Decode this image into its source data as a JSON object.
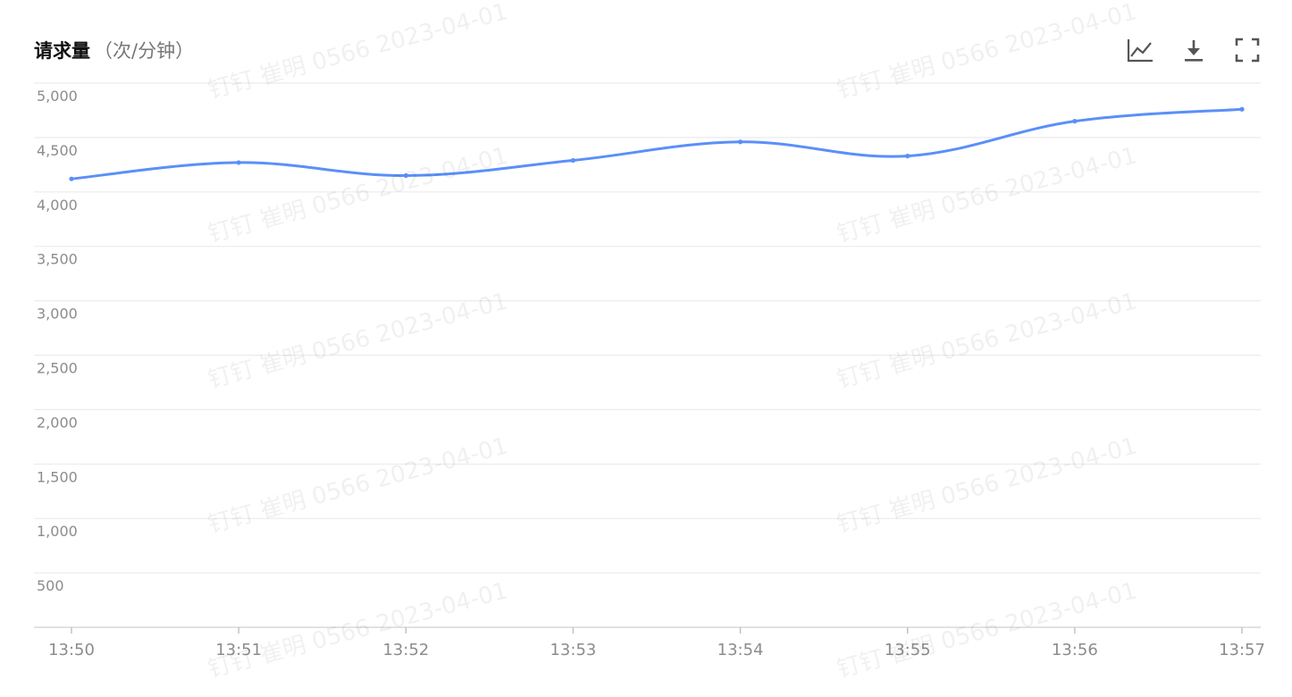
{
  "header": {
    "title": "请求量",
    "unit": "（次/分钟）"
  },
  "toolbar": {
    "icons": [
      "line-chart-icon",
      "download-icon",
      "fullscreen-icon"
    ]
  },
  "watermark": {
    "text": "钉钉 崔明 0566 2023-04-01"
  },
  "chart_data": {
    "type": "line",
    "title": "请求量（次/分钟）",
    "x": [
      "13:50",
      "13:51",
      "13:52",
      "13:53",
      "13:54",
      "13:55",
      "13:56",
      "13:57"
    ],
    "series": [
      {
        "values": [
          4120,
          4270,
          4150,
          4290,
          4460,
          4330,
          4650,
          4760
        ],
        "color": "#5b8ff9"
      }
    ],
    "yticks": [
      500,
      1000,
      1500,
      2000,
      2500,
      3000,
      3500,
      4000,
      4500,
      5000
    ],
    "ytick_labels": [
      "500",
      "1,000",
      "1,500",
      "2,000",
      "2,500",
      "3,000",
      "3,500",
      "4,000",
      "4,500",
      "5,000"
    ],
    "ylim": [
      0,
      5000
    ],
    "grid": true,
    "smooth": true,
    "legend": "none"
  }
}
